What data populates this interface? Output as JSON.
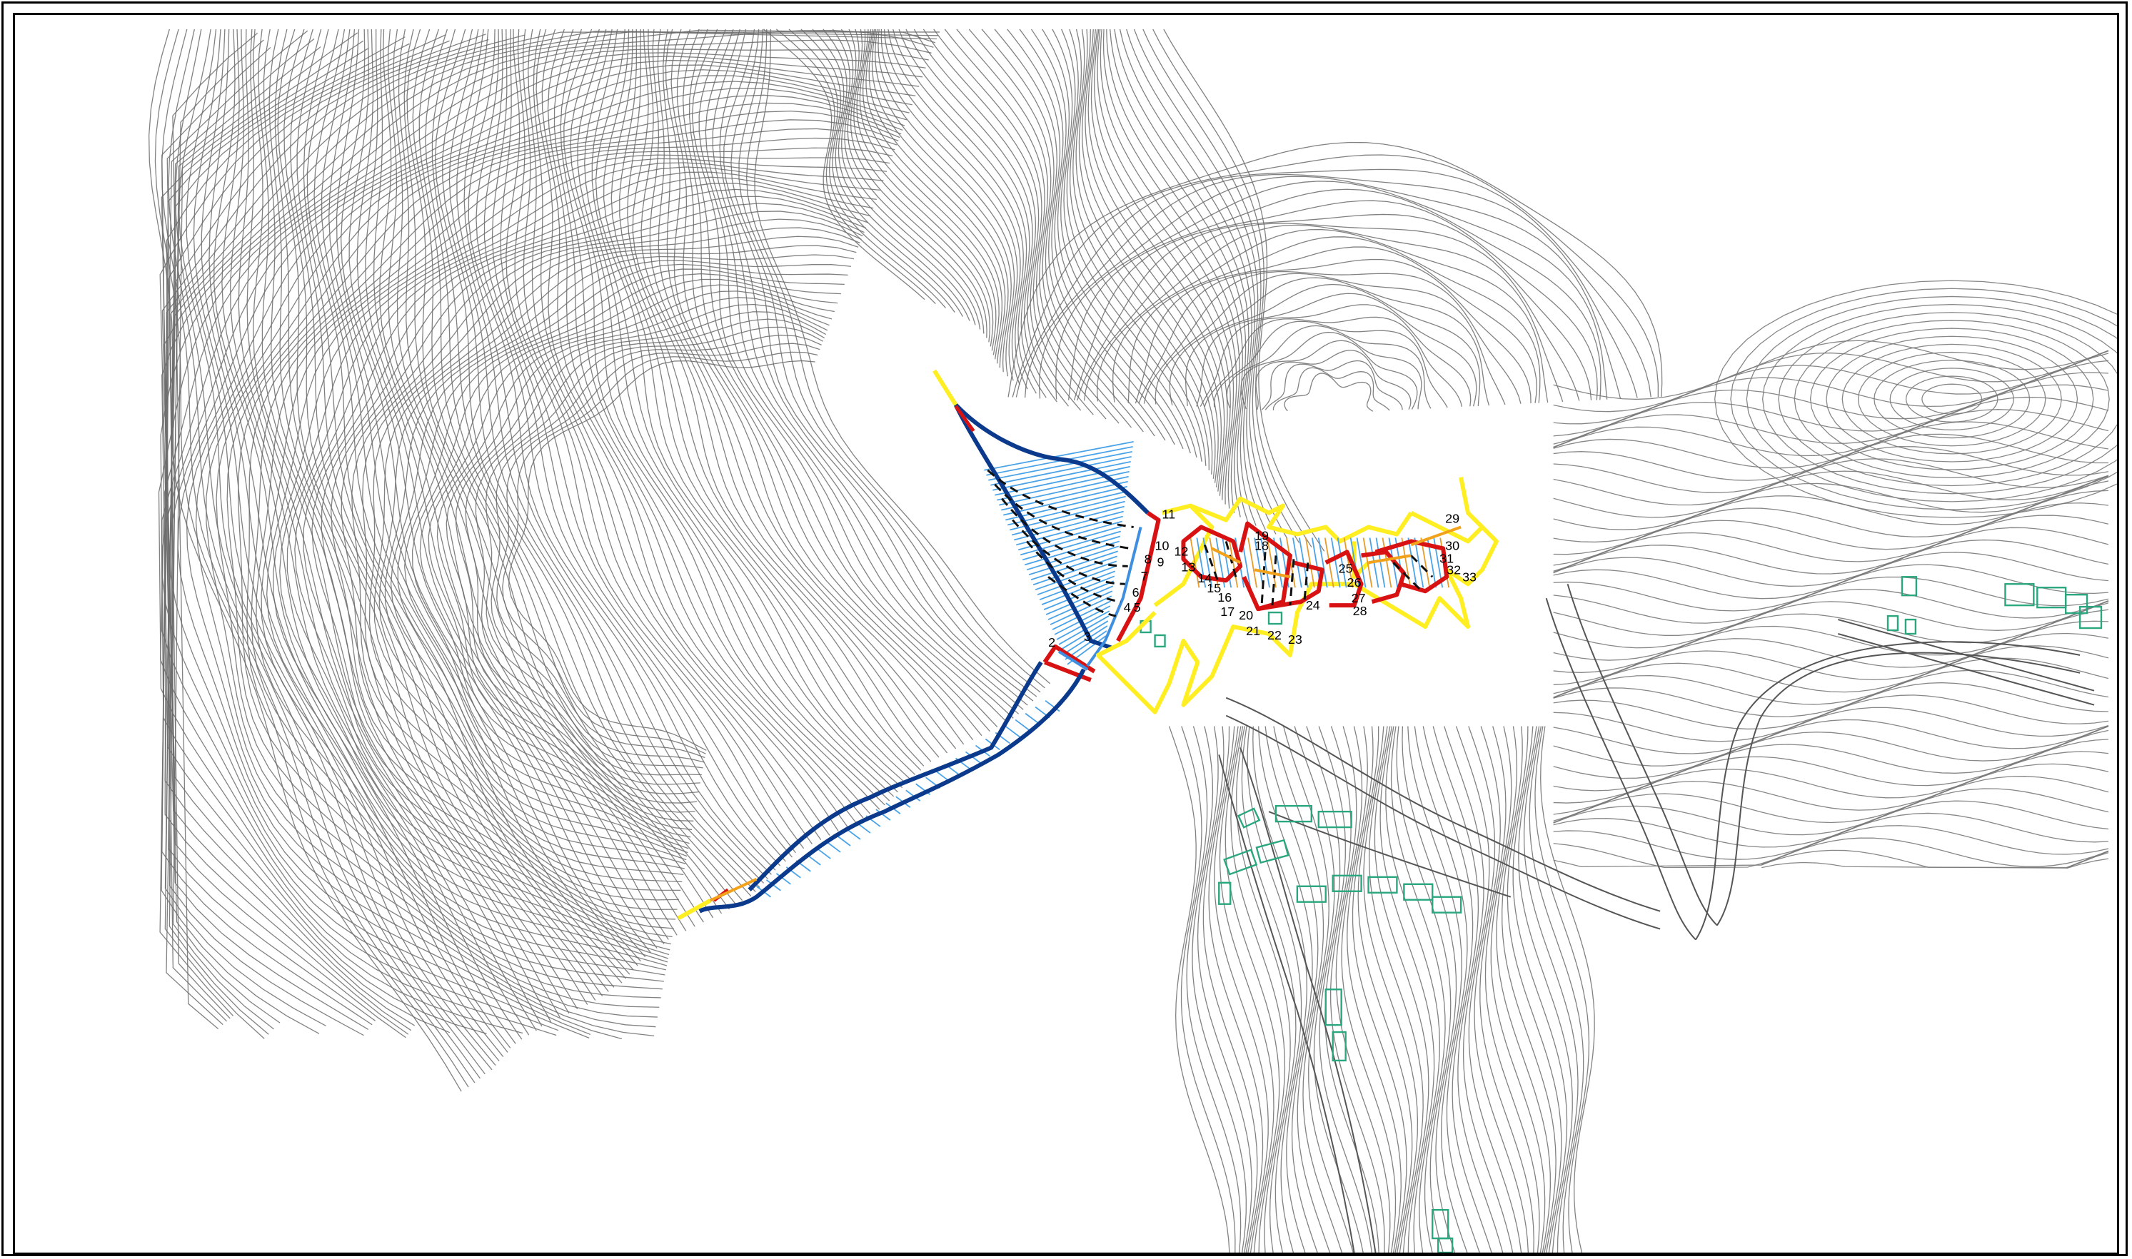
{
  "map": {
    "colors": {
      "contour": "#6b6b6b",
      "boundary_yellow": "#ffee22",
      "boundary_red": "#d81212",
      "boundary_blue": "#0b3a8c",
      "fill_light_blue": "#3f8fe0",
      "fill_orange": "#f2a21a",
      "building_green": "#2aa77e"
    },
    "section_labels": [
      "2",
      "3",
      "4",
      "5",
      "6",
      "7",
      "8",
      "9",
      "10",
      "11",
      "12",
      "13",
      "14",
      "15",
      "16",
      "17",
      "18",
      "19",
      "20",
      "21",
      "22",
      "23",
      "24",
      "25",
      "26",
      "27",
      "28",
      "29",
      "30",
      "31",
      "32",
      "33"
    ]
  }
}
